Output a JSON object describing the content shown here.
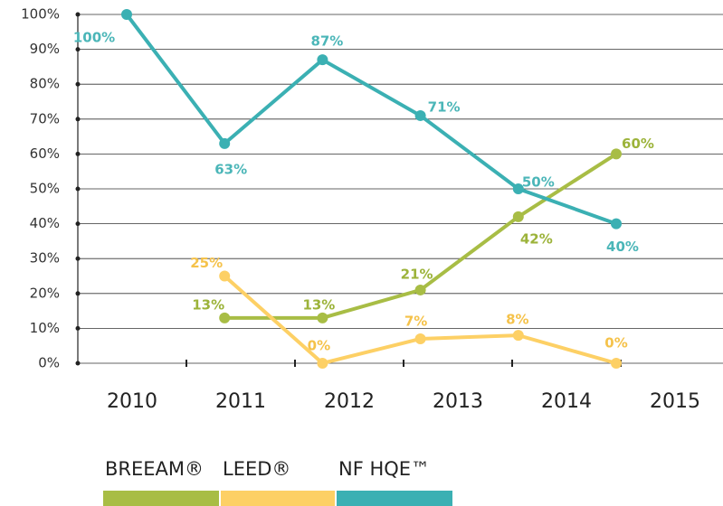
{
  "chart_data": {
    "type": "line",
    "categories": [
      "2010",
      "2011",
      "2012",
      "2013",
      "2014",
      "2015"
    ],
    "series": [
      {
        "name": "BREEAM®",
        "color": "#a8bd45",
        "label_color": "#9cb33a",
        "values": [
          null,
          13,
          13,
          21,
          42,
          60
        ],
        "value_labels": [
          null,
          "13%",
          "13%",
          "21%",
          "42%",
          "60%"
        ]
      },
      {
        "name": "LEED®",
        "color": "#fdd065",
        "label_color": "#f5c24a",
        "values": [
          null,
          25,
          0,
          7,
          8,
          0
        ],
        "value_labels": [
          null,
          "25%",
          "0%",
          "7%",
          "8%",
          "0%"
        ]
      },
      {
        "name": "NF HQE™",
        "color": "#3bb0b3",
        "label_color": "#4bb6b8",
        "values": [
          100,
          63,
          87,
          71,
          50,
          40
        ],
        "value_labels": [
          "100%",
          "63%",
          "87%",
          "71%",
          "50%",
          "40%"
        ]
      }
    ],
    "ylim": [
      0,
      100
    ],
    "yticks": [
      {
        "value": 0,
        "label": "0%"
      },
      {
        "value": 10,
        "label": "10%"
      },
      {
        "value": 20,
        "label": "20%"
      },
      {
        "value": 30,
        "label": "30%"
      },
      {
        "value": 40,
        "label": "40%"
      },
      {
        "value": 50,
        "label": "50%"
      },
      {
        "value": 60,
        "label": "60%"
      },
      {
        "value": 70,
        "label": "70%"
      },
      {
        "value": 80,
        "label": "80%"
      },
      {
        "value": 90,
        "label": "90%"
      },
      {
        "value": 100,
        "label": "100%"
      }
    ],
    "grid": true
  }
}
